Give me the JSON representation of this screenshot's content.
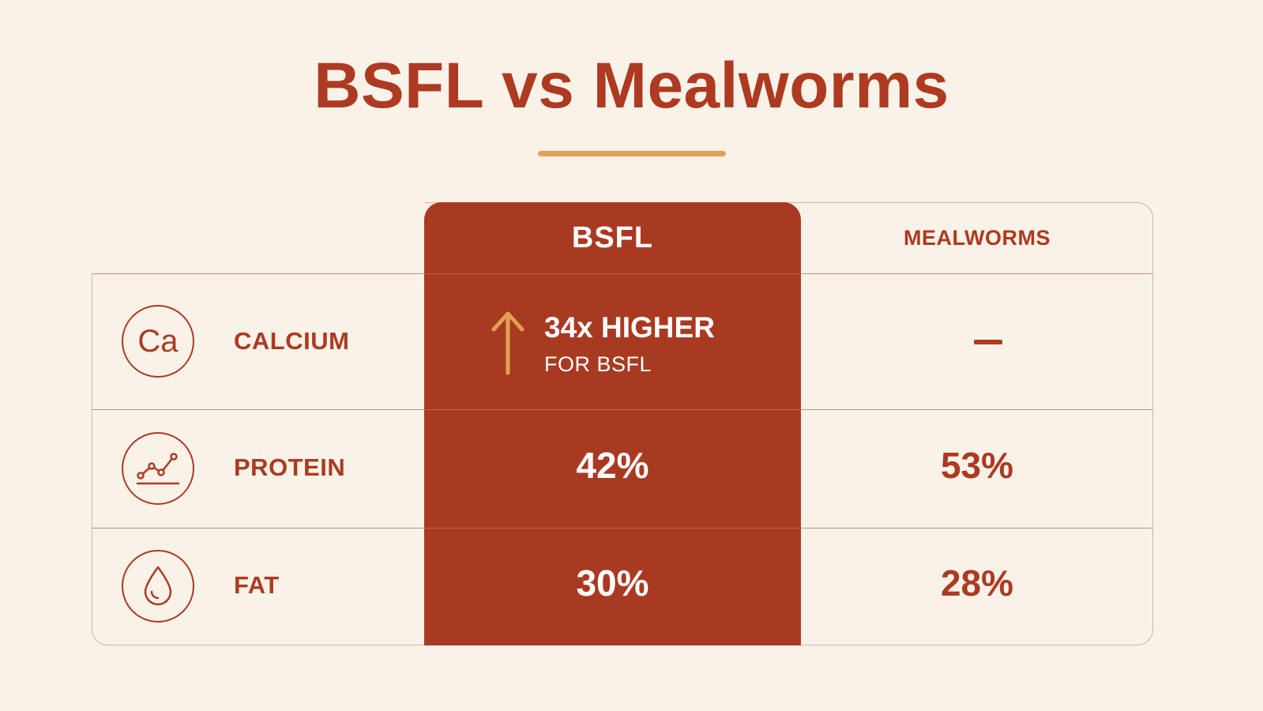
{
  "title": "BSFL vs Mealworms",
  "colors": {
    "background": "#f8f2e8",
    "accent_red": "#a93a22",
    "underline_orange": "#e3a253"
  },
  "columns": {
    "bsfl": "BSFL",
    "mealworms": "MEALWORMS"
  },
  "rows": [
    {
      "icon": "calcium-symbol-icon",
      "icon_text": "Ca",
      "label": "CALCIUM",
      "bsfl": {
        "main": "34x HIGHER",
        "sub": "FOR BSFL",
        "icon": "up-arrow-icon"
      },
      "mealworms": "–"
    },
    {
      "icon": "line-chart-icon",
      "label": "PROTEIN",
      "bsfl": "42%",
      "mealworms": "53%"
    },
    {
      "icon": "droplet-icon",
      "label": "FAT",
      "bsfl": "30%",
      "mealworms": "28%"
    }
  ]
}
